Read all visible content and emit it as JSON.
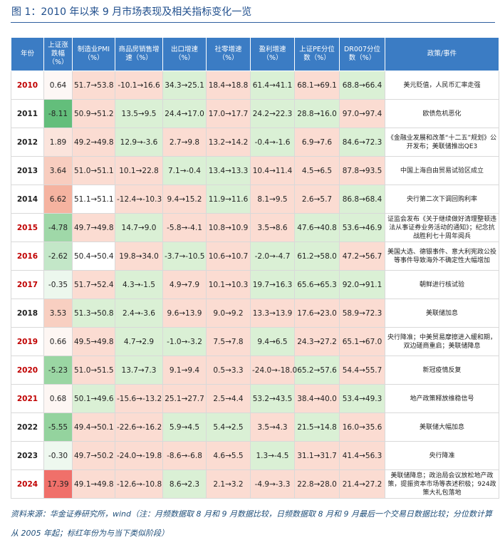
{
  "header": {
    "title": "图 1：2010 年以来 9 月市场表现及相关指标变化一览"
  },
  "table": {
    "columns": [
      "年份",
      "上证涨跌幅（%）",
      "制造业PMI（%）",
      "商品房销售增速（%）",
      "出口增速（%）",
      "社零增速（%）",
      "盈利增速（%）",
      "上证PE分位数（%）",
      "DR007分位数（%）",
      "政策/事件"
    ],
    "rows": [
      [
        "2010",
        "0.64",
        "51.7→53.8",
        "-10.1→16.6",
        "34.3→25.1",
        "18.4→18.8",
        "61.4→41.1",
        "68.1→69.1",
        "68.8→66.4",
        "美元贬值，人民币汇率走强"
      ],
      [
        "2011",
        "-8.11",
        "50.9→51.2",
        "13.5→9.5",
        "24.4→17.0",
        "17.0→17.7",
        "24.2→22.3",
        "28.8→16.0",
        "97.0→97.4",
        "欧债危机恶化"
      ],
      [
        "2012",
        "1.89",
        "49.2→49.8",
        "12.9→-3.6",
        "2.7→9.8",
        "13.2→14.2",
        "-0.4→-1.6",
        "6.9→7.6",
        "84.6→72.3",
        "《金融业发展和改革“十二五”规划》公开发布；美联储推出QE3"
      ],
      [
        "2013",
        "3.64",
        "51.0→51.1",
        "10.1→22.8",
        "7.1→-0.4",
        "13.4→13.3",
        "10.4→11.4",
        "4.5→6.5",
        "87.8→93.5",
        "中国上海自由贸易试验区成立"
      ],
      [
        "2014",
        "6.62",
        "51.1→51.1",
        "-12.4→-10.3",
        "9.4→15.2",
        "11.9→11.6",
        "8.1→9.5",
        "2.6→5.7",
        "86.8→68.4",
        "央行第二次下调回购利率"
      ],
      [
        "2015",
        "-4.78",
        "49.7→49.8",
        "14.7→9.0",
        "-5.8→-4.1",
        "10.8→10.9",
        "3.5→8.6",
        "47.6→40.8",
        "53.6→46.9",
        "证监会发布《关于继续做好清理整顿违法从事证券业务活动的通知》；纪念抗战胜利七十周年阅兵"
      ],
      [
        "2016",
        "-2.62",
        "50.4→50.4",
        "19.8→34.0",
        "-3.7→-10.5",
        "10.6→10.7",
        "-2.0→-4.7",
        "61.2→58.0",
        "47.2→56.7",
        "美国大选、德银事件、意大利宪政公投等事件导致海外不确定性大幅增加"
      ],
      [
        "2017",
        "-0.35",
        "51.7→52.4",
        "4.3→-1.5",
        "4.9→7.9",
        "10.1→10.3",
        "19.7→16.3",
        "65.6→65.3",
        "92.0→91.1",
        "朝鲜进行核试验"
      ],
      [
        "2018",
        "3.53",
        "51.3→50.8",
        "2.4→-3.6",
        "9.6→13.9",
        "9.0→9.2",
        "13.3→13.9",
        "17.6→23.0",
        "58.9→72.3",
        "美联储加息"
      ],
      [
        "2019",
        "0.66",
        "49.5→49.8",
        "4.7→2.9",
        "-1.0→-3.2",
        "7.5→7.8",
        "9.4→6.5",
        "24.3→27.2",
        "65.1→67.0",
        "央行降准；中美贸易摩擦进入缓和期，双边磋商重启；美联储降息"
      ],
      [
        "2020",
        "-5.23",
        "51.0→51.5",
        "13.7→7.3",
        "9.1→9.4",
        "0.5→3.3",
        "-24.0→-18.0",
        "65.2→57.6",
        "54.4→55.7",
        "新冠疫情反复"
      ],
      [
        "2021",
        "0.68",
        "50.1→49.6",
        "-15.6→-13.2",
        "25.1→27.7",
        "2.5→4.4",
        "53.2→43.5",
        "38.4→40.0",
        "53.4→49.3",
        "地产政策释放维稳信号"
      ],
      [
        "2022",
        "-5.55",
        "49.4→50.1",
        "-22.6→-16.2",
        "5.9→4.5",
        "5.4→2.5",
        "3.5→4.3",
        "21.5→14.8",
        "16.0→35.6",
        "美联储大幅加息"
      ],
      [
        "2023",
        "-0.30",
        "49.7→50.2",
        "-24.0→-19.8",
        "-8.6→-6.8",
        "4.6→5.5",
        "1.3→-4.5",
        "31.1→31.7",
        "41.4→56.3",
        "央行降准"
      ],
      [
        "2024",
        "17.39",
        "49.1→49.8",
        "-12.6→-10.8",
        "8.6→2.3",
        "2.1→3.2",
        "-4.9→-3.3",
        "22.8→28.0",
        "21.4→27.2",
        "美联储降息；政治局会议放松地产政策，提振资本市场等表述积极；924政策大礼包落地"
      ]
    ],
    "highlight_years": [
      true,
      false,
      false,
      false,
      false,
      true,
      true,
      true,
      false,
      true,
      true,
      true,
      false,
      false,
      true
    ],
    "cell_colors": [
      [
        "#fdf7f5",
        "#fbdcd2",
        "#fbdcd2",
        "#daf0d5",
        "#fbdcd2",
        "#daf0d5",
        "#fbdcd2",
        "#daf0d5"
      ],
      [
        "#63be7b",
        "#fbdcd2",
        "#daf0d5",
        "#daf0d5",
        "#fbdcd2",
        "#daf0d5",
        "#daf0d5",
        "#fbdcd2"
      ],
      [
        "#fbe4dc",
        "#fbdcd2",
        "#daf0d5",
        "#fbdcd2",
        "#fbdcd2",
        "#daf0d5",
        "#fbdcd2",
        "#daf0d5"
      ],
      [
        "#f8cdbf",
        "#fbdcd2",
        "#fbdcd2",
        "#daf0d5",
        "#daf0d5",
        "#fbdcd2",
        "#fbdcd2",
        "#fbdcd2"
      ],
      [
        "#f5b3a0",
        "#ffffff",
        "#fbdcd2",
        "#fbdcd2",
        "#daf0d5",
        "#fbdcd2",
        "#fbdcd2",
        "#daf0d5"
      ],
      [
        "#9fd8a8",
        "#fbdcd2",
        "#daf0d5",
        "#fbdcd2",
        "#fbdcd2",
        "#fbdcd2",
        "#daf0d5",
        "#daf0d5"
      ],
      [
        "#c3e7c8",
        "#ffffff",
        "#fbdcd2",
        "#daf0d5",
        "#fbdcd2",
        "#daf0d5",
        "#daf0d5",
        "#fbdcd2"
      ],
      [
        "#ecf7ed",
        "#fbdcd2",
        "#daf0d5",
        "#fbdcd2",
        "#fbdcd2",
        "#daf0d5",
        "#daf0d5",
        "#daf0d5"
      ],
      [
        "#f8cfc1",
        "#daf0d5",
        "#daf0d5",
        "#fbdcd2",
        "#fbdcd2",
        "#fbdcd2",
        "#fbdcd2",
        "#fbdcd2"
      ],
      [
        "#fdf6f3",
        "#fbdcd2",
        "#daf0d5",
        "#daf0d5",
        "#fbdcd2",
        "#daf0d5",
        "#fbdcd2",
        "#fbdcd2"
      ],
      [
        "#9ad6a3",
        "#fbdcd2",
        "#daf0d5",
        "#fbdcd2",
        "#fbdcd2",
        "#fbdcd2",
        "#daf0d5",
        "#fbdcd2"
      ],
      [
        "#fdf6f3",
        "#daf0d5",
        "#fbdcd2",
        "#fbdcd2",
        "#fbdcd2",
        "#daf0d5",
        "#fbdcd2",
        "#daf0d5"
      ],
      [
        "#94d39e",
        "#fbdcd2",
        "#fbdcd2",
        "#daf0d5",
        "#daf0d5",
        "#fbdcd2",
        "#daf0d5",
        "#fbdcd2"
      ],
      [
        "#eef8ef",
        "#fbdcd2",
        "#fbdcd2",
        "#fbdcd2",
        "#fbdcd2",
        "#daf0d5",
        "#fbdcd2",
        "#fbdcd2"
      ],
      [
        "#f0706a",
        "#fbdcd2",
        "#fbdcd2",
        "#daf0d5",
        "#fbdcd2",
        "#fbdcd2",
        "#fbdcd2",
        "#fbdcd2"
      ]
    ]
  },
  "footer": {
    "note": "资料来源：华金证券研究所，wind（注：月频数据取 8 月和 9 月数据比较，日频数据取 8 月和 9 月最后一个交易日数据比较；分位数计算从 2005 年起；标红年份为与当下类似阶段）"
  }
}
